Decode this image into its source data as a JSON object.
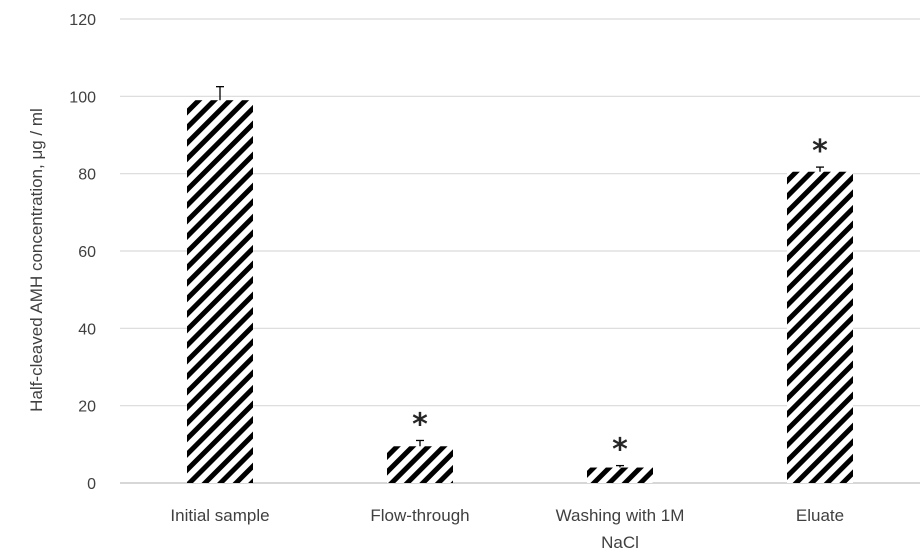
{
  "chart_data": {
    "type": "bar",
    "title": "",
    "xlabel": "",
    "ylabel": "Half-cleaved AMH concentration, μg / ml",
    "ylim": [
      0,
      120
    ],
    "yticks": [
      0,
      20,
      40,
      60,
      80,
      100,
      120
    ],
    "grid": true,
    "legend": "none",
    "categories": [
      [
        "Initial sample"
      ],
      [
        "Flow-through"
      ],
      [
        "Washing with 1M",
        "NaCl"
      ],
      [
        "Eluate"
      ]
    ],
    "values": [
      99,
      9.5,
      4,
      80.5
    ],
    "error_plus": [
      3.5,
      1.5,
      0.5,
      1.2
    ],
    "significance": [
      "",
      "*",
      "*",
      "*"
    ],
    "bar_pattern": "diagonal-hatch",
    "colors": {
      "bar_stroke": "#000000",
      "grid": "#d9d9d9",
      "text": "#404040"
    }
  }
}
